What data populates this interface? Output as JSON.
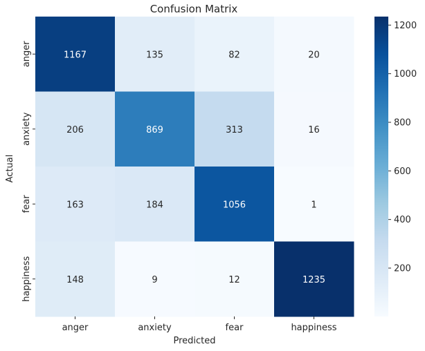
{
  "chart_data": {
    "type": "heatmap",
    "title": "Confusion Matrix",
    "xlabel": "Predicted",
    "ylabel": "Actual",
    "x_categories": [
      "anger",
      "anxiety",
      "fear",
      "happiness"
    ],
    "y_categories": [
      "anger",
      "anxiety",
      "fear",
      "happiness"
    ],
    "values": [
      [
        1167,
        135,
        82,
        20
      ],
      [
        206,
        869,
        313,
        16
      ],
      [
        163,
        184,
        1056,
        1
      ],
      [
        148,
        9,
        12,
        1235
      ]
    ],
    "colormap": "Blues",
    "color_range": [
      1,
      1235
    ],
    "colorbar_ticks": [
      200,
      400,
      600,
      800,
      1000,
      1200
    ],
    "grid": false,
    "legend": "colorbar-right"
  }
}
